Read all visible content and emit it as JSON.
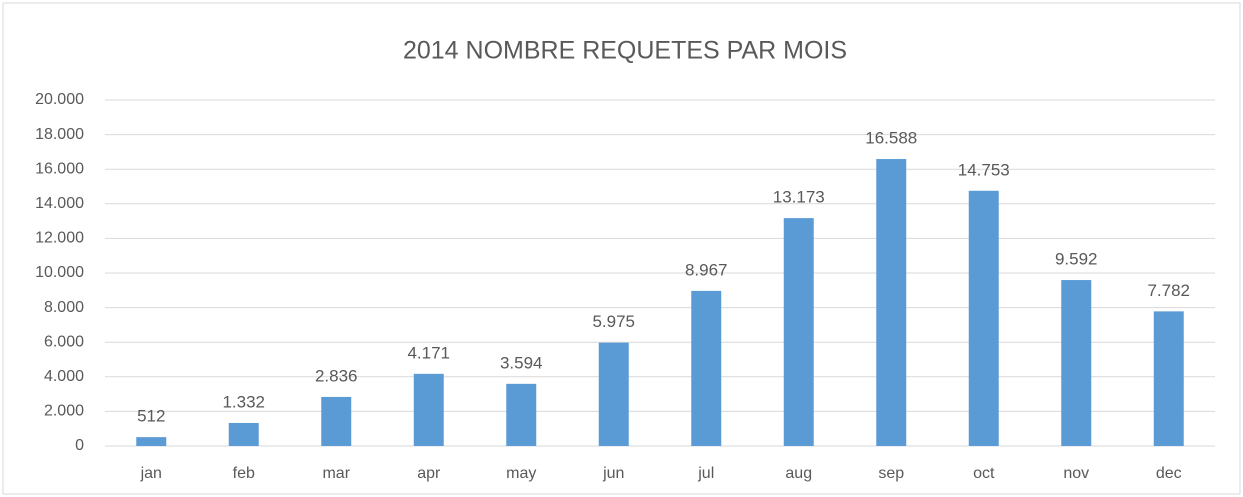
{
  "chart_data": {
    "type": "bar",
    "title": "2014 NOMBRE REQUETES PAR MOIS",
    "categories": [
      "jan",
      "feb",
      "mar",
      "apr",
      "may",
      "jun",
      "jul",
      "aug",
      "sep",
      "oct",
      "nov",
      "dec"
    ],
    "values": [
      512,
      1332,
      2836,
      4171,
      3594,
      5975,
      8967,
      13173,
      16588,
      14753,
      9592,
      7782
    ],
    "value_labels": [
      "512",
      "1.332",
      "2.836",
      "4.171",
      "3.594",
      "5.975",
      "8.967",
      "13.173",
      "16.588",
      "14.753",
      "9.592",
      "7.782"
    ],
    "color": "#5b9bd5",
    "ylim": [
      0,
      20000
    ],
    "yticks": [
      0,
      {
        "value": 2000,
        "label": "2.000"
      },
      {
        "value": 4000,
        "label": "4.000"
      },
      {
        "value": 6000,
        "label": "6.000"
      },
      {
        "value": 8000,
        "label": "8.000"
      },
      {
        "value": 10000,
        "label": "10.000"
      },
      {
        "value": 12000,
        "label": "12.000"
      },
      {
        "value": 14000,
        "label": "14.000"
      },
      {
        "value": 16000,
        "label": "16.000"
      },
      {
        "value": 18000,
        "label": "18.000"
      },
      {
        "value": 20000,
        "label": "20.000"
      }
    ],
    "grid": true
  }
}
